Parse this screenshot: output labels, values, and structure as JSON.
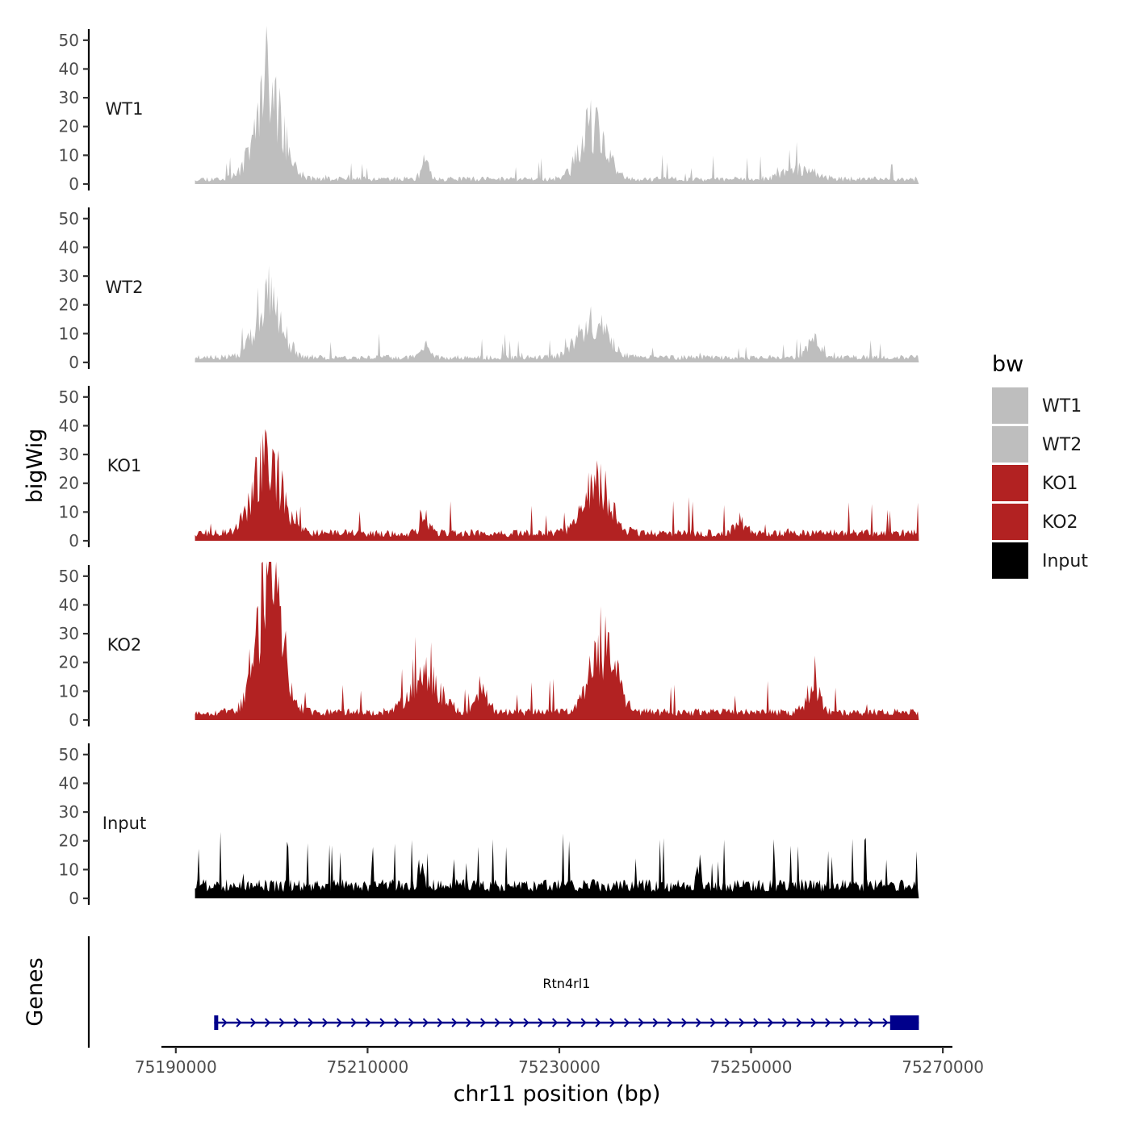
{
  "chart_data": {
    "type": "area",
    "title": "",
    "xlabel": "chr11 position (bp)",
    "ylabel": "bigWig",
    "gene_track_label": "Genes",
    "xlim": [
      75188500,
      75271000
    ],
    "data_start": 75192000,
    "data_end": 75267500,
    "x_ticks": [
      75190000,
      75210000,
      75230000,
      75250000,
      75270000
    ],
    "x_tick_labels": [
      "75190000",
      "75210000",
      "75230000",
      "75250000",
      "75270000"
    ],
    "ylim": [
      0,
      55
    ],
    "y_ticks": [
      0,
      10,
      20,
      30,
      40,
      50
    ],
    "y_tick_labels": [
      "0",
      "10",
      "20",
      "30",
      "40",
      "50"
    ],
    "legend": {
      "title": "bw",
      "position": "right",
      "entries": [
        {
          "label": "WT1",
          "color": "#bebebe"
        },
        {
          "label": "WT2",
          "color": "#bebebe"
        },
        {
          "label": "KO1",
          "color": "#b22222"
        },
        {
          "label": "KO2",
          "color": "#b22222"
        },
        {
          "label": "Input",
          "color": "#000000"
        }
      ]
    },
    "series": [
      {
        "name": "WT1",
        "color": "#bebebe",
        "baseline": 2,
        "seed": 11,
        "peaks": [
          {
            "x": 75199700,
            "h": 34,
            "w": 1400
          },
          {
            "x": 75233500,
            "h": 20,
            "w": 1300
          },
          {
            "x": 75216000,
            "h": 6,
            "w": 400
          },
          {
            "x": 75255000,
            "h": 4,
            "w": 1500
          }
        ]
      },
      {
        "name": "WT2",
        "color": "#bebebe",
        "baseline": 2,
        "seed": 23,
        "peaks": [
          {
            "x": 75199700,
            "h": 24,
            "w": 1300
          },
          {
            "x": 75233500,
            "h": 13,
            "w": 1500
          },
          {
            "x": 75256500,
            "h": 7,
            "w": 600
          },
          {
            "x": 75216000,
            "h": 5,
            "w": 400
          }
        ]
      },
      {
        "name": "KO1",
        "color": "#b22222",
        "baseline": 3,
        "seed": 37,
        "peaks": [
          {
            "x": 75199500,
            "h": 30,
            "w": 1400
          },
          {
            "x": 75234000,
            "h": 20,
            "w": 1300
          },
          {
            "x": 75216000,
            "h": 7,
            "w": 400
          },
          {
            "x": 75249000,
            "h": 5,
            "w": 600
          }
        ]
      },
      {
        "name": "KO2",
        "color": "#b22222",
        "baseline": 3,
        "seed": 53,
        "peaks": [
          {
            "x": 75199800,
            "h": 48,
            "w": 1300
          },
          {
            "x": 75234500,
            "h": 27,
            "w": 1300
          },
          {
            "x": 75216000,
            "h": 14,
            "w": 1500
          },
          {
            "x": 75256500,
            "h": 9,
            "w": 700
          },
          {
            "x": 75222000,
            "h": 7,
            "w": 600
          }
        ]
      },
      {
        "name": "Input",
        "color": "#000000",
        "baseline": 5,
        "seed": 71,
        "peaks": [
          {
            "x": 75215500,
            "h": 9,
            "w": 250
          },
          {
            "x": 75244500,
            "h": 8,
            "w": 250
          }
        ]
      }
    ],
    "gene": {
      "name": "Rtn4rl1",
      "start": 75194000,
      "end": 75267500,
      "strand": "+",
      "exons": [
        [
          75194000,
          75194400
        ],
        [
          75264500,
          75267500
        ]
      ],
      "color": "#00008b"
    }
  }
}
